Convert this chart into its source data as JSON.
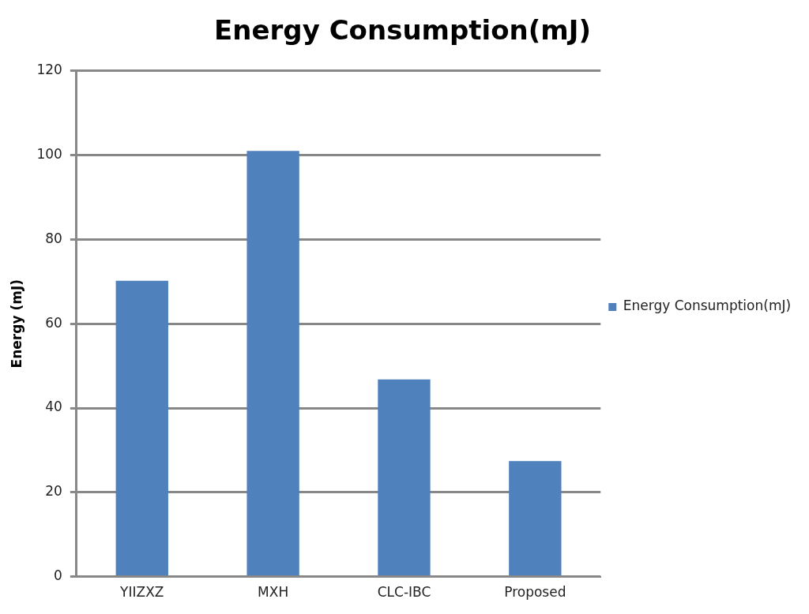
{
  "chart_data": {
    "type": "bar",
    "title": "Energy Consumption(mJ)",
    "ylabel": "Energy (mJ)",
    "categories": [
      "YIIZXZ",
      "MXH",
      "CLC-IBC",
      "Proposed"
    ],
    "series": [
      {
        "name": "Energy Consumption(mJ)",
        "color": "#4f81bd",
        "values": [
          70.2,
          101,
          46.8,
          27.4
        ]
      }
    ],
    "ylim": [
      0,
      120
    ],
    "yticks": [
      0,
      20,
      40,
      60,
      80,
      100,
      120
    ],
    "grid": "y",
    "legend": "right"
  }
}
